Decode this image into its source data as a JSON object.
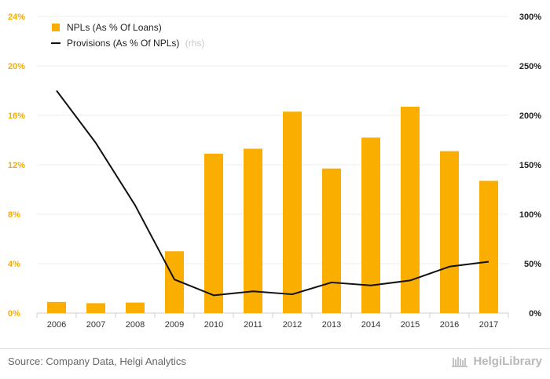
{
  "chart_data": {
    "type": "bar+line",
    "categories": [
      "2006",
      "2007",
      "2008",
      "2009",
      "2010",
      "2011",
      "2012",
      "2013",
      "2014",
      "2015",
      "2016",
      "2017"
    ],
    "series": [
      {
        "name": "NPLs (As % Of Loans)",
        "axis": "left",
        "kind": "bar",
        "color": "#f9ae00",
        "values": [
          0.9,
          0.8,
          0.85,
          5.0,
          12.9,
          13.3,
          16.3,
          11.7,
          14.2,
          16.7,
          13.1,
          10.7
        ]
      },
      {
        "name": "Provisions (As % Of NPLs)",
        "axis": "right",
        "kind": "line",
        "color": "#111111",
        "values": [
          225,
          172,
          109,
          34,
          18,
          22,
          19,
          31,
          28,
          33,
          47,
          52
        ]
      }
    ],
    "left_axis": {
      "min": 0,
      "max": 24,
      "step": 4,
      "ticks": [
        "0%",
        "4%",
        "8%",
        "12%",
        "16%",
        "20%",
        "24%"
      ]
    },
    "right_axis": {
      "min": 0,
      "max": 300,
      "step": 50,
      "ticks": [
        "0%",
        "50%",
        "100%",
        "150%",
        "200%",
        "250%",
        "300%"
      ]
    },
    "legend": {
      "position": "top-left",
      "items": [
        {
          "label": "NPLs (As % Of Loans)",
          "suffix": ""
        },
        {
          "label": "Provisions (As % Of NPLs)",
          "suffix": "(rhs)"
        }
      ]
    }
  },
  "footer": {
    "source": "Source: Company Data, Helgi Analytics",
    "brand": "HelgiLibrary"
  }
}
